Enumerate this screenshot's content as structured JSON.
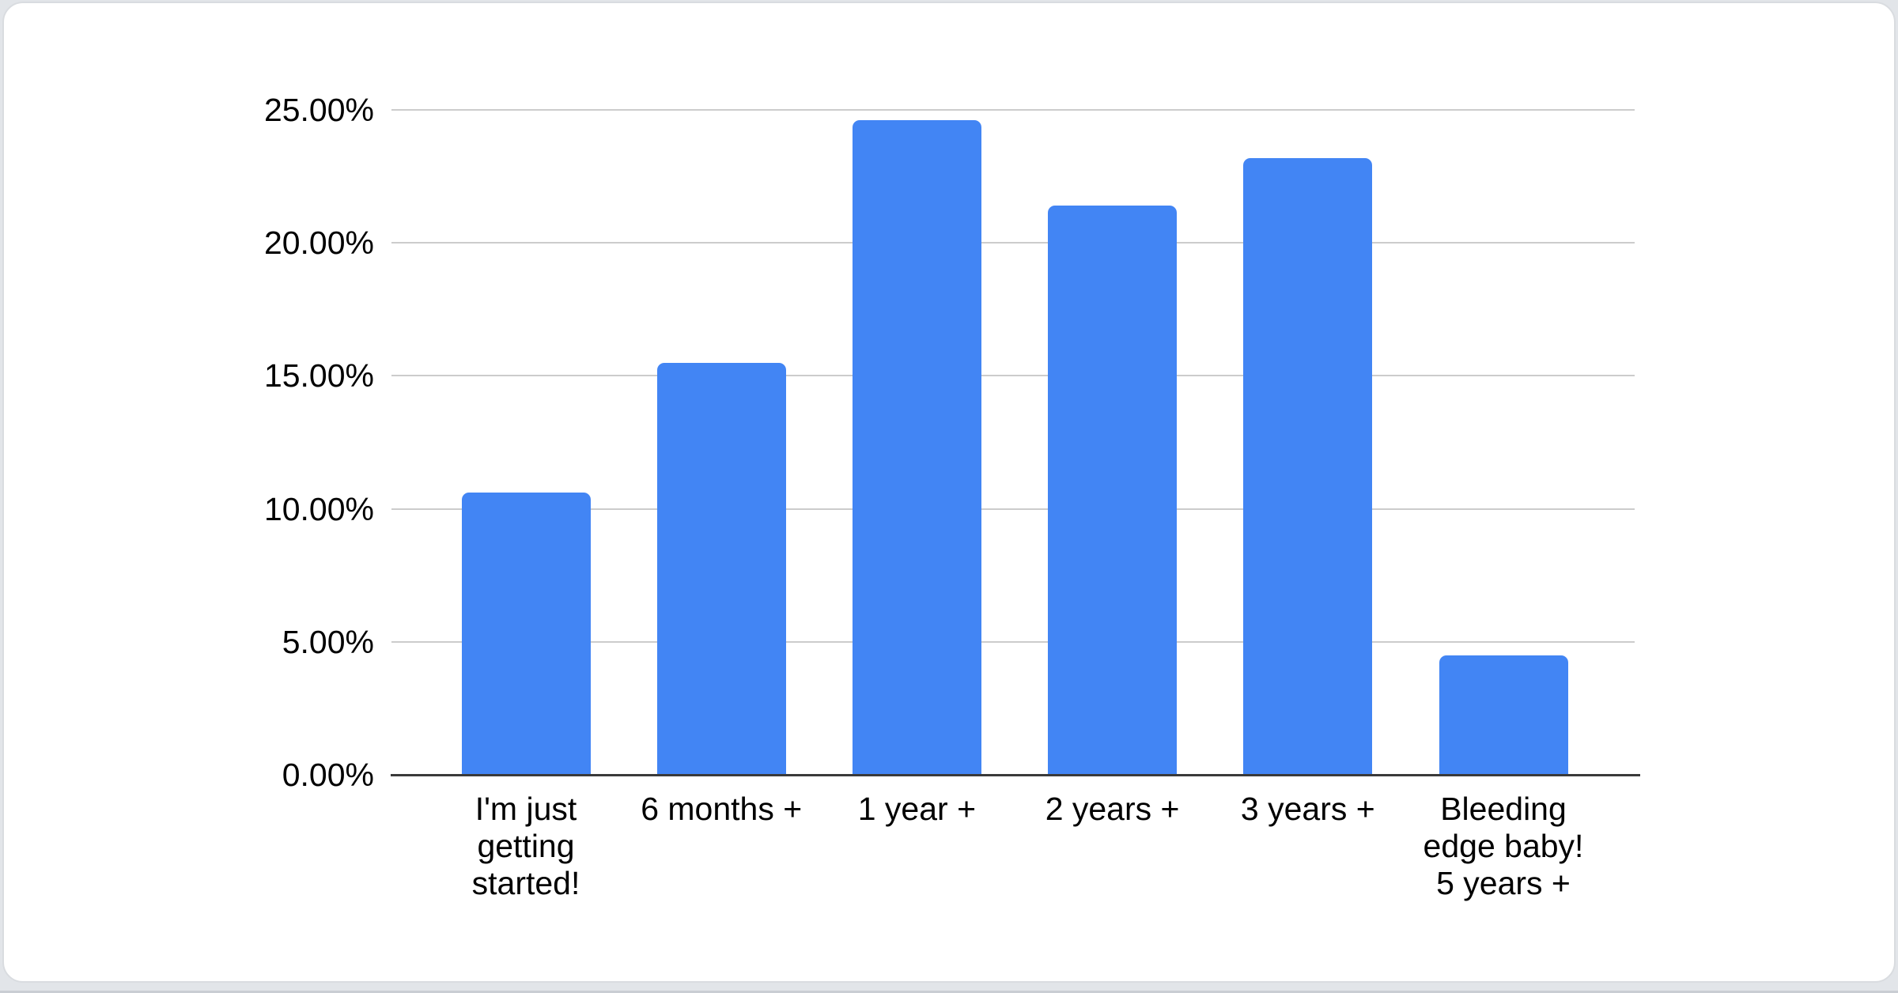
{
  "page": {
    "background": "#e2e5e9",
    "card_background": "#ffffff",
    "card_border": "#d9dce0"
  },
  "chart_data": {
    "type": "bar",
    "title": "",
    "xlabel": "",
    "ylabel": "",
    "legend_position": "none",
    "grid": true,
    "ylim": [
      0,
      25
    ],
    "categories": [
      "I'm just\ngetting\nstarted!",
      "6 months +",
      "1 year +",
      "2 years +",
      "3 years +",
      "Bleeding\nedge baby!\n5 years +"
    ],
    "values": [
      10.6,
      15.5,
      24.6,
      21.4,
      23.2,
      4.5
    ],
    "yticks": [
      {
        "value": 25,
        "label": "25.00%"
      },
      {
        "value": 20,
        "label": "20.00%"
      },
      {
        "value": 15,
        "label": "15.00%"
      },
      {
        "value": 10,
        "label": "10.00%"
      },
      {
        "value": 5,
        "label": "5.00%"
      },
      {
        "value": 0,
        "label": "0.00%"
      }
    ],
    "colors": {
      "bar": "#4285f4",
      "gridline": "#cccccc",
      "axis_line": "#3a3a3a",
      "label_text": "#000000"
    }
  }
}
